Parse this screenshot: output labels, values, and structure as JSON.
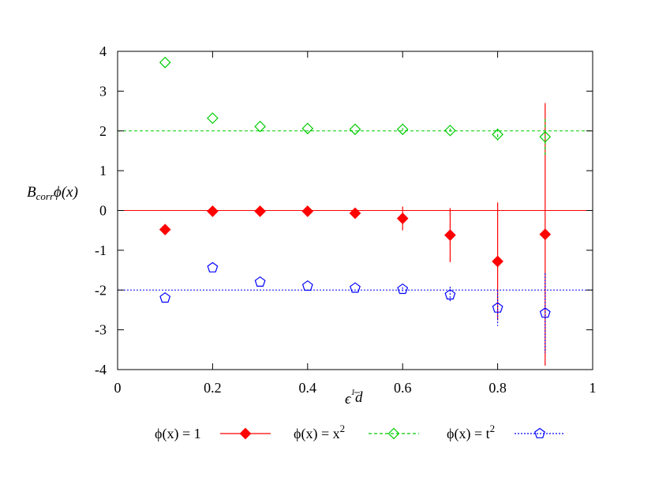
{
  "chart_data": {
    "type": "scatter",
    "xlabel": "ϵ^(1/d)",
    "ylabel": "B_corr ϕ(x)",
    "xlim": [
      0,
      1
    ],
    "ylim": [
      -4,
      4
    ],
    "x_ticks": [
      "0",
      "0.2",
      "0.4",
      "0.6",
      "0.8",
      "1"
    ],
    "y_ticks": [
      "4",
      "3",
      "2",
      "1",
      "0",
      "-1",
      "-2",
      "-3",
      "-4"
    ],
    "grid": false,
    "legend_position": "bottom",
    "reference_lines": [
      {
        "y": 2,
        "color": "#00cc00",
        "style": "dashed"
      },
      {
        "y": 0,
        "color": "#ff0000",
        "style": "solid"
      },
      {
        "y": -2,
        "color": "#0000ff",
        "style": "dotted"
      }
    ],
    "series": [
      {
        "name": "ϕ(x) = 1",
        "color": "#ff0000",
        "marker": "filled-diamond",
        "line_style": "solid",
        "x": [
          0.1,
          0.2,
          0.3,
          0.4,
          0.5,
          0.6,
          0.7,
          0.8,
          0.9
        ],
        "y": [
          -0.48,
          -0.02,
          -0.02,
          -0.02,
          -0.07,
          -0.2,
          -0.62,
          -1.28,
          -0.6
        ],
        "yerr": [
          0,
          0,
          0,
          0,
          0.05,
          0.3,
          0.68,
          1.48,
          3.3
        ]
      },
      {
        "name": "ϕ(x) = x²",
        "color": "#00cc00",
        "marker": "open-diamond",
        "line_style": "dashed",
        "x": [
          0.1,
          0.2,
          0.3,
          0.4,
          0.5,
          0.6,
          0.7,
          0.8,
          0.9
        ],
        "y": [
          3.72,
          2.32,
          2.11,
          2.06,
          2.04,
          2.04,
          2.01,
          1.91,
          1.85
        ],
        "yerr": [
          0,
          0,
          0,
          0,
          0,
          0.03,
          0.05,
          0.15,
          0.45
        ]
      },
      {
        "name": "ϕ(x) = t²",
        "color": "#0000ff",
        "marker": "open-pentagon",
        "line_style": "dotted",
        "x": [
          0.1,
          0.2,
          0.3,
          0.4,
          0.5,
          0.6,
          0.7,
          0.8,
          0.9
        ],
        "y": [
          -2.2,
          -1.44,
          -1.8,
          -1.9,
          -1.95,
          -1.98,
          -2.12,
          -2.45,
          -2.58
        ],
        "yerr": [
          0,
          0,
          0,
          0,
          0,
          0.05,
          0.2,
          0.45,
          1.0
        ]
      }
    ]
  }
}
